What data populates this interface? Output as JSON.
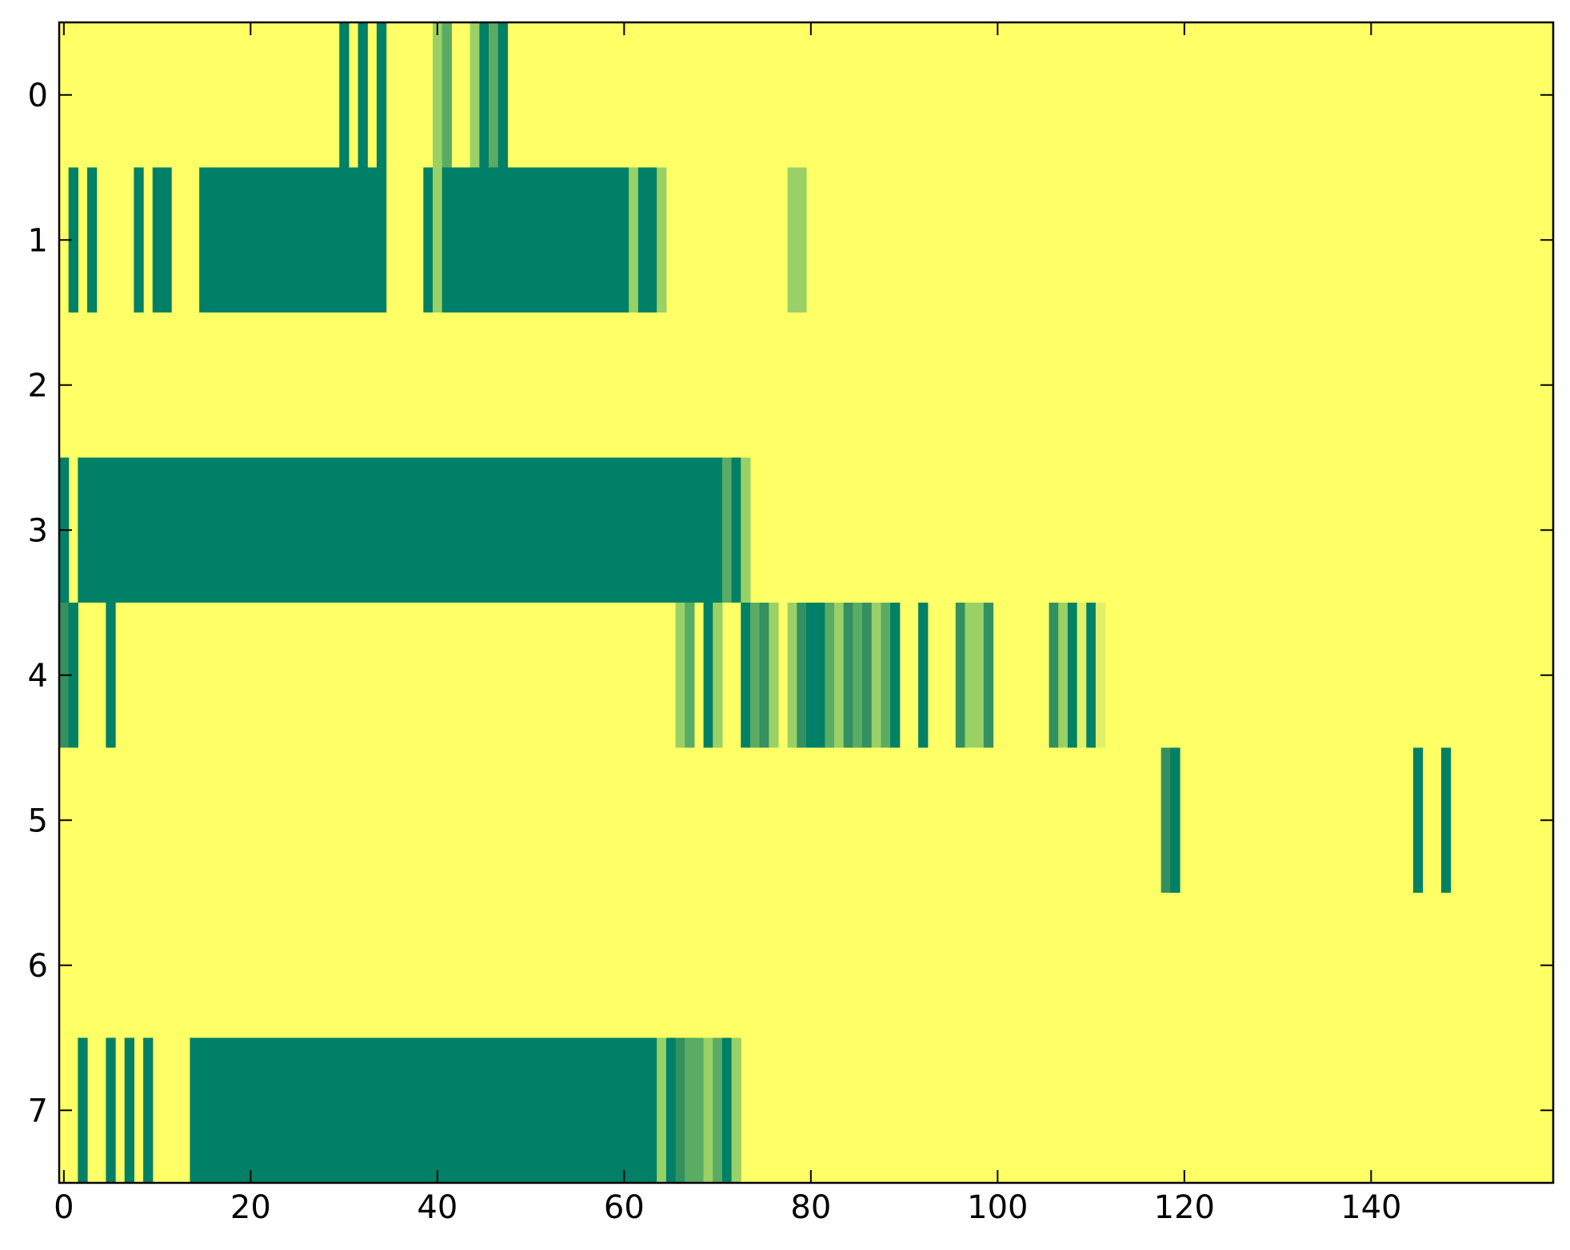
{
  "chart_data": {
    "type": "heatmap",
    "title": "",
    "xlabel": "",
    "ylabel": "",
    "xlim": [
      -0.5,
      159.5
    ],
    "ylim": [
      7.5,
      -0.5
    ],
    "grid": false,
    "legend": "none",
    "x_ticks": [
      "0",
      "20",
      "40",
      "60",
      "80",
      "100",
      "120",
      "140"
    ],
    "x_tick_values": [
      0,
      20,
      40,
      60,
      80,
      100,
      120,
      140
    ],
    "y_ticks": [
      "0",
      "1",
      "2",
      "3",
      "4",
      "5",
      "6",
      "7"
    ],
    "y_tick_values": [
      0,
      1,
      2,
      3,
      4,
      5,
      6,
      7
    ],
    "n_rows": 8,
    "n_cols": 160,
    "background_value": 0,
    "colormap": [
      "#ffff66",
      "#e0f06a",
      "#9ad166",
      "#5aac64",
      "#339060",
      "#008066"
    ],
    "cells": [
      {
        "row": 0,
        "segments": [
          [
            30,
            30,
            5
          ],
          [
            32,
            32,
            5
          ],
          [
            34,
            34,
            5
          ],
          [
            40,
            40,
            2
          ],
          [
            41,
            41,
            3
          ],
          [
            44,
            44,
            2
          ],
          [
            45,
            45,
            5
          ],
          [
            46,
            46,
            3
          ],
          [
            47,
            47,
            5
          ]
        ]
      },
      {
        "row": 1,
        "segments": [
          [
            1,
            1,
            5
          ],
          [
            3,
            3,
            5
          ],
          [
            8,
            8,
            5
          ],
          [
            10,
            11,
            5
          ],
          [
            15,
            34,
            5
          ],
          [
            39,
            39,
            5
          ],
          [
            40,
            40,
            2
          ],
          [
            41,
            60,
            5
          ],
          [
            61,
            61,
            2
          ],
          [
            62,
            63,
            5
          ],
          [
            64,
            64,
            2
          ],
          [
            78,
            79,
            2
          ]
        ]
      },
      {
        "row": 2,
        "segments": []
      },
      {
        "row": 3,
        "segments": [
          [
            0,
            0,
            5
          ],
          [
            2,
            70,
            5
          ],
          [
            71,
            71,
            3
          ],
          [
            72,
            72,
            5
          ],
          [
            73,
            73,
            2
          ]
        ]
      },
      {
        "row": 4,
        "segments": [
          [
            -0.5,
            0,
            4
          ],
          [
            1,
            1,
            5
          ],
          [
            5,
            5,
            5
          ],
          [
            66,
            66,
            2
          ],
          [
            67,
            67,
            3
          ],
          [
            69,
            69,
            5
          ],
          [
            70,
            70,
            2
          ],
          [
            73,
            73,
            5
          ],
          [
            74,
            74,
            3
          ],
          [
            75,
            75,
            4
          ],
          [
            76,
            76,
            2
          ],
          [
            78,
            78,
            2
          ],
          [
            79,
            79,
            4
          ],
          [
            80,
            81,
            5
          ],
          [
            82,
            82,
            3
          ],
          [
            83,
            83,
            2
          ],
          [
            84,
            84,
            4
          ],
          [
            85,
            85,
            3
          ],
          [
            86,
            86,
            4
          ],
          [
            87,
            87,
            2
          ],
          [
            88,
            88,
            3
          ],
          [
            89,
            89,
            5
          ],
          [
            92,
            92,
            5
          ],
          [
            96,
            96,
            4
          ],
          [
            97,
            98,
            2
          ],
          [
            99,
            99,
            4
          ],
          [
            106,
            106,
            4
          ],
          [
            107,
            107,
            2
          ],
          [
            108,
            108,
            5
          ],
          [
            109,
            109,
            1
          ],
          [
            110,
            110,
            5
          ],
          [
            111,
            111,
            1
          ]
        ]
      },
      {
        "row": 5,
        "segments": [
          [
            118,
            118,
            4
          ],
          [
            119,
            119,
            5
          ],
          [
            145,
            145,
            5
          ],
          [
            148,
            148,
            5
          ]
        ]
      },
      {
        "row": 6,
        "segments": []
      },
      {
        "row": 7,
        "segments": [
          [
            2,
            2,
            5
          ],
          [
            5,
            5,
            5
          ],
          [
            7,
            7,
            5
          ],
          [
            9,
            9,
            5
          ],
          [
            14,
            63,
            5
          ],
          [
            64,
            64,
            2
          ],
          [
            65,
            65,
            5
          ],
          [
            66,
            66,
            4
          ],
          [
            67,
            68,
            3
          ],
          [
            69,
            69,
            2
          ],
          [
            70,
            70,
            3
          ],
          [
            71,
            71,
            5
          ],
          [
            72,
            72,
            2
          ]
        ]
      }
    ]
  }
}
